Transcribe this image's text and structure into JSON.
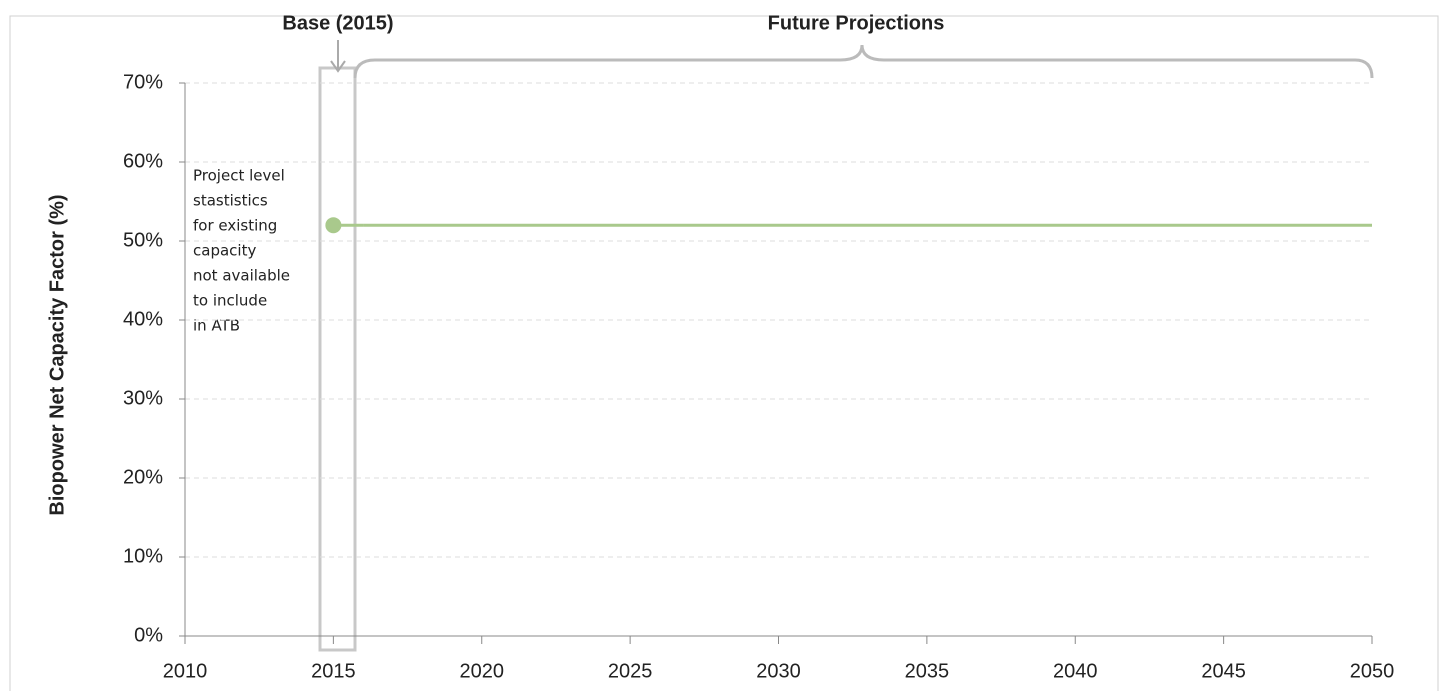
{
  "chart_data": {
    "type": "line",
    "ylabel": "Biopower Net Capacity Factor (%)",
    "annotations": {
      "base": "Base (2015)",
      "future": "Future Projections",
      "note": [
        "Project level",
        "stastistics",
        "for existing",
        "capacity",
        "not available",
        "to include",
        "in ATB"
      ]
    },
    "series": [
      {
        "color": "#a9c98c",
        "x": [
          2015,
          2016
        ],
        "values": [
          52,
          52
        ],
        "marker": "first"
      },
      {
        "color": "#a9c98c",
        "x": [
          2016,
          2050
        ],
        "values": [
          52,
          52
        ]
      }
    ],
    "xlim": [
      2010,
      2050
    ],
    "xticks": [
      2010,
      2015,
      2020,
      2025,
      2030,
      2035,
      2040,
      2045,
      2050
    ],
    "ylim": [
      0,
      70
    ],
    "yticks": [
      {
        "value": 0,
        "label": "0%"
      },
      {
        "value": 10,
        "label": "10%"
      },
      {
        "value": 20,
        "label": "20%"
      },
      {
        "value": 30,
        "label": "30%"
      },
      {
        "value": 40,
        "label": "40%"
      },
      {
        "value": 50,
        "label": "50%"
      },
      {
        "value": 60,
        "label": "60%"
      },
      {
        "value": 70,
        "label": "70%"
      }
    ],
    "grid": true
  }
}
